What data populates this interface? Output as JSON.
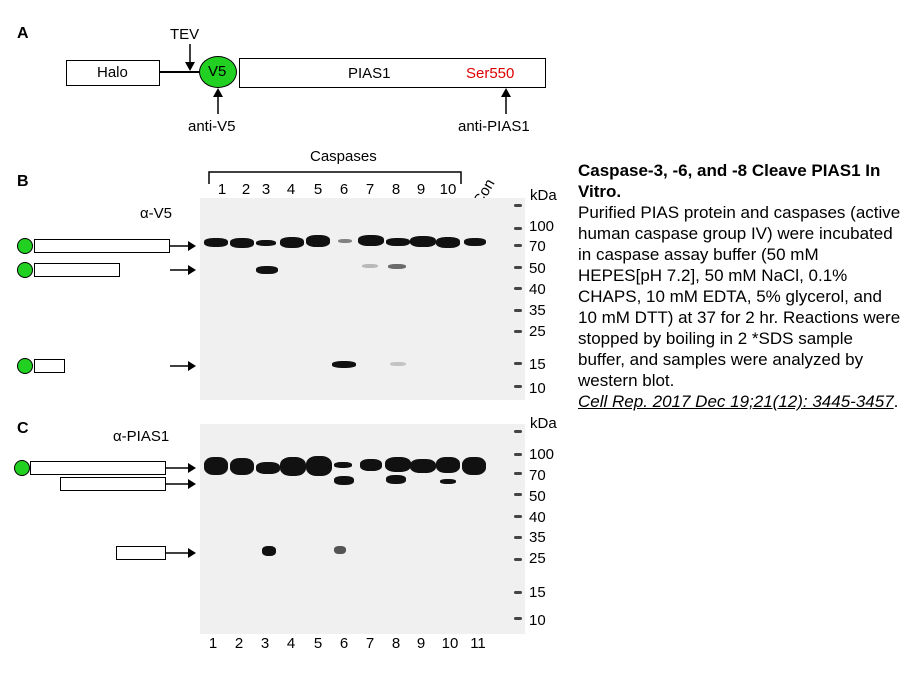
{
  "panelA": {
    "label": "A",
    "halo": "Halo",
    "tev": "TEV",
    "v5": "V5",
    "pias1": "PIAS1",
    "ser": "Ser550",
    "anti_v5": "anti-V5",
    "anti_pias1": "anti-PIAS1",
    "colors": {
      "v5_fill": "#22d022",
      "ser_text": "#e00000"
    }
  },
  "panelB": {
    "label": "B",
    "antibody": "α-V5",
    "caspases": "Caspases",
    "lanes": [
      "1",
      "2",
      "3",
      "4",
      "5",
      "6",
      "7",
      "8",
      "9",
      "10"
    ],
    "con": "Con",
    "kda": "kDa",
    "markers": [
      "100",
      "70",
      "50",
      "40",
      "35",
      "25",
      "15",
      "10"
    ]
  },
  "panelC": {
    "label": "C",
    "antibody": "α-PIAS1",
    "kda": "kDa",
    "markers": [
      "100",
      "70",
      "50",
      "40",
      "35",
      "25",
      "15",
      "10"
    ],
    "lanes": [
      "1",
      "2",
      "3",
      "4",
      "5",
      "6",
      "7",
      "8",
      "9",
      "10",
      "11"
    ]
  },
  "caption": {
    "title": "Caspase-3, -6, and -8 Cleave PIAS1 In Vitro.",
    "body": "Purified PIAS protein and caspases (active human caspase group IV) were incubated in caspase assay buffer (50 mM HEPES[pH 7.2], 50 mM NaCl, 0.1% CHAPS, 10 mM EDTA, 5% glycerol, and 10 mM DTT) at 37  for 2 hr. Reactions were stopped by boiling in 2 *SDS sample buffer, and samples were analyzed by western blot.",
    "citation": "Cell Rep. 2017 Dec 19;21(12): 3445-3457",
    "period": "."
  }
}
